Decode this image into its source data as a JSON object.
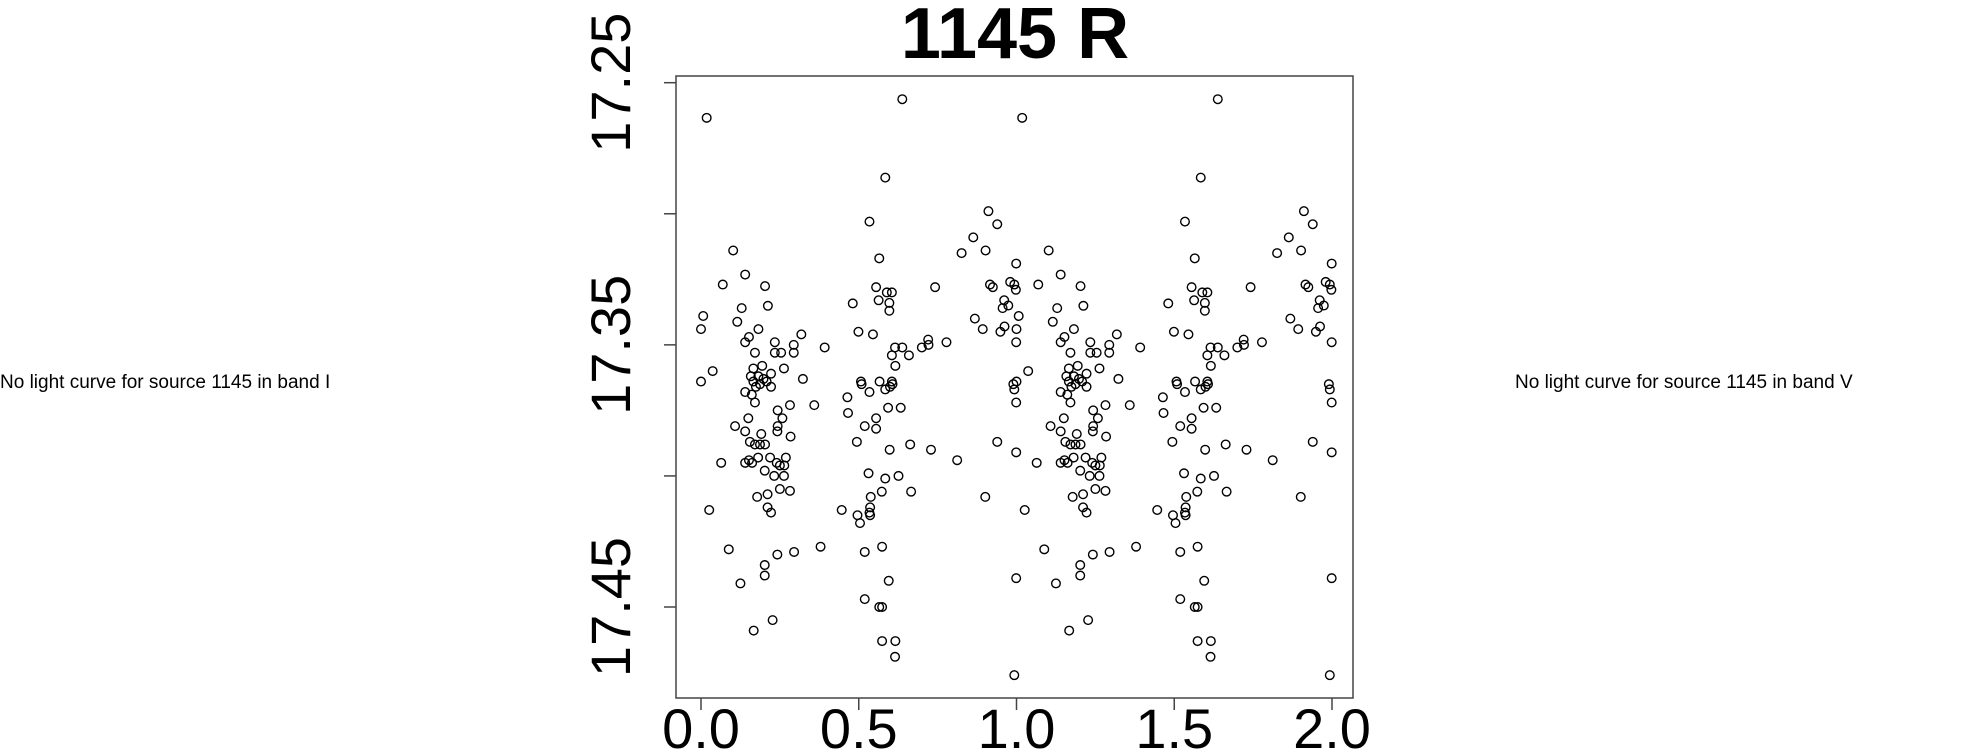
{
  "left_panel": {
    "message": "No light curve for source 1145 in band I"
  },
  "right_panel": {
    "message": "No light curve for source 1145 in band V"
  },
  "chart_data": {
    "type": "scatter",
    "title": "1145 R",
    "xlabel": "",
    "ylabel": "",
    "xlim": [
      -0.08,
      2.06
    ],
    "ylim": [
      17.4845,
      17.2475
    ],
    "y_inverted": true,
    "x_ticks": [
      {
        "value": 0,
        "label": "0.0"
      },
      {
        "value": 0.5,
        "label": "0.5"
      },
      {
        "value": 1,
        "label": "1.0"
      },
      {
        "value": 1.5,
        "label": "1.5"
      },
      {
        "value": 2,
        "label": "2.0"
      }
    ],
    "y_ticks": [
      {
        "value": 17.25,
        "label": "17.25"
      },
      {
        "value": 17.3,
        "label": ""
      },
      {
        "value": 17.35,
        "label": "17.35"
      },
      {
        "value": 17.4,
        "label": ""
      },
      {
        "value": 17.45,
        "label": "17.45"
      }
    ],
    "grid": false,
    "marker": "open-circle",
    "phase_repeat_offsets": [
      0,
      1
    ],
    "points": [
      [
        0.018,
        17.2634
      ],
      [
        0.102,
        17.314
      ],
      [
        0.14,
        17.3232
      ],
      [
        0.069,
        17.327
      ],
      [
        0.203,
        17.3276
      ],
      [
        0.481,
        17.3342
      ],
      [
        0.129,
        17.336
      ],
      [
        0.212,
        17.3351
      ],
      [
        0.007,
        17.339
      ],
      [
        0.0,
        17.344
      ],
      [
        0.115,
        17.3412
      ],
      [
        0.182,
        17.344
      ],
      [
        0.152,
        17.347
      ],
      [
        0.14,
        17.349
      ],
      [
        0.318,
        17.346
      ],
      [
        0.234,
        17.349
      ],
      [
        0.294,
        17.35
      ],
      [
        0.392,
        17.351
      ],
      [
        0.171,
        17.353
      ],
      [
        0.234,
        17.353
      ],
      [
        0.254,
        17.353
      ],
      [
        0.294,
        17.353
      ],
      [
        0.194,
        17.358
      ],
      [
        0.166,
        17.359
      ],
      [
        0.263,
        17.359
      ],
      [
        0.037,
        17.36
      ],
      [
        0.0,
        17.364
      ],
      [
        0.222,
        17.361
      ],
      [
        0.158,
        17.362
      ],
      [
        0.182,
        17.362
      ],
      [
        0.198,
        17.363
      ],
      [
        0.166,
        17.364
      ],
      [
        0.187,
        17.365
      ],
      [
        0.208,
        17.364
      ],
      [
        0.174,
        17.366
      ],
      [
        0.222,
        17.366
      ],
      [
        0.323,
        17.363
      ],
      [
        0.14,
        17.368
      ],
      [
        0.161,
        17.369
      ],
      [
        0.171,
        17.372
      ],
      [
        0.464,
        17.37
      ],
      [
        0.466,
        17.376
      ],
      [
        0.282,
        17.373
      ],
      [
        0.359,
        17.373
      ],
      [
        0.243,
        17.375
      ],
      [
        0.258,
        17.378
      ],
      [
        0.15,
        17.378
      ],
      [
        0.108,
        17.381
      ],
      [
        0.14,
        17.383
      ],
      [
        0.243,
        17.381
      ],
      [
        0.242,
        17.383
      ],
      [
        0.191,
        17.384
      ],
      [
        0.284,
        17.385
      ],
      [
        0.155,
        17.387
      ],
      [
        0.171,
        17.388
      ],
      [
        0.187,
        17.388
      ],
      [
        0.203,
        17.388
      ],
      [
        0.064,
        17.395
      ],
      [
        0.14,
        17.395
      ],
      [
        0.152,
        17.394
      ],
      [
        0.162,
        17.395
      ],
      [
        0.181,
        17.393
      ],
      [
        0.219,
        17.393
      ],
      [
        0.269,
        17.393
      ],
      [
        0.24,
        17.395
      ],
      [
        0.25,
        17.396
      ],
      [
        0.264,
        17.396
      ],
      [
        0.202,
        17.398
      ],
      [
        0.232,
        17.4
      ],
      [
        0.263,
        17.4
      ],
      [
        0.282,
        17.4057
      ],
      [
        0.25,
        17.405
      ],
      [
        0.211,
        17.407
      ],
      [
        0.178,
        17.408
      ],
      [
        0.026,
        17.413
      ],
      [
        0.211,
        17.412
      ],
      [
        0.222,
        17.414
      ],
      [
        0.446,
        17.413
      ],
      [
        0.088,
        17.428
      ],
      [
        0.242,
        17.43
      ],
      [
        0.295,
        17.429
      ],
      [
        0.379,
        17.427
      ],
      [
        0.202,
        17.434
      ],
      [
        0.202,
        17.438
      ],
      [
        0.125,
        17.441
      ],
      [
        0.227,
        17.455
      ],
      [
        0.167,
        17.459
      ],
      [
        0.638,
        17.2563
      ],
      [
        0.584,
        17.2862
      ],
      [
        0.534,
        17.303
      ],
      [
        0.565,
        17.317
      ],
      [
        0.911,
        17.299
      ],
      [
        0.939,
        17.304
      ],
      [
        0.863,
        17.309
      ],
      [
        0.826,
        17.315
      ],
      [
        0.902,
        17.314
      ],
      [
        0.999,
        17.319
      ],
      [
        0.555,
        17.328
      ],
      [
        0.742,
        17.328
      ],
      [
        0.589,
        17.33
      ],
      [
        0.605,
        17.33
      ],
      [
        0.563,
        17.333
      ],
      [
        0.597,
        17.334
      ],
      [
        0.597,
        17.337
      ],
      [
        0.916,
        17.327
      ],
      [
        0.925,
        17.328
      ],
      [
        0.98,
        17.326
      ],
      [
        0.993,
        17.327
      ],
      [
        0.998,
        17.329
      ],
      [
        0.961,
        17.333
      ],
      [
        0.974,
        17.335
      ],
      [
        0.956,
        17.336
      ],
      [
        0.868,
        17.34
      ],
      [
        0.893,
        17.344
      ],
      [
        0.949,
        17.345
      ],
      [
        0.962,
        17.343
      ],
      [
        0.999,
        17.349
      ],
      [
        0.499,
        17.345
      ],
      [
        0.545,
        17.346
      ],
      [
        0.615,
        17.351
      ],
      [
        0.638,
        17.351
      ],
      [
        0.605,
        17.354
      ],
      [
        0.659,
        17.354
      ],
      [
        0.616,
        17.358
      ],
      [
        0.72,
        17.348
      ],
      [
        0.7,
        17.351
      ],
      [
        0.721,
        17.35
      ],
      [
        0.778,
        17.349
      ],
      [
        0.507,
        17.364
      ],
      [
        0.509,
        17.365
      ],
      [
        0.566,
        17.364
      ],
      [
        0.534,
        17.368
      ],
      [
        0.584,
        17.367
      ],
      [
        0.605,
        17.364
      ],
      [
        0.607,
        17.365
      ],
      [
        0.599,
        17.366
      ],
      [
        0.99,
        17.365
      ],
      [
        0.993,
        17.367
      ],
      [
        0.999,
        17.372
      ],
      [
        0.593,
        17.374
      ],
      [
        0.633,
        17.374
      ],
      [
        0.555,
        17.378
      ],
      [
        0.519,
        17.381
      ],
      [
        0.555,
        17.382
      ],
      [
        0.494,
        17.387
      ],
      [
        0.598,
        17.39
      ],
      [
        0.663,
        17.388
      ],
      [
        0.729,
        17.39
      ],
      [
        0.812,
        17.394
      ],
      [
        0.939,
        17.387
      ],
      [
        0.999,
        17.391
      ],
      [
        0.531,
        17.399
      ],
      [
        0.584,
        17.401
      ],
      [
        0.626,
        17.4
      ],
      [
        0.573,
        17.406
      ],
      [
        0.666,
        17.406
      ],
      [
        0.901,
        17.408
      ],
      [
        0.538,
        17.408
      ],
      [
        0.536,
        17.412
      ],
      [
        0.534,
        17.414
      ],
      [
        0.536,
        17.415
      ],
      [
        0.496,
        17.415
      ],
      [
        0.504,
        17.418
      ],
      [
        0.574,
        17.427
      ],
      [
        0.519,
        17.429
      ],
      [
        0.595,
        17.44
      ],
      [
        0.999,
        17.439
      ],
      [
        0.519,
        17.447
      ],
      [
        0.565,
        17.45
      ],
      [
        0.574,
        17.45
      ],
      [
        0.574,
        17.463
      ],
      [
        0.616,
        17.463
      ],
      [
        0.615,
        17.469
      ],
      [
        0.993,
        17.476
      ]
    ]
  }
}
